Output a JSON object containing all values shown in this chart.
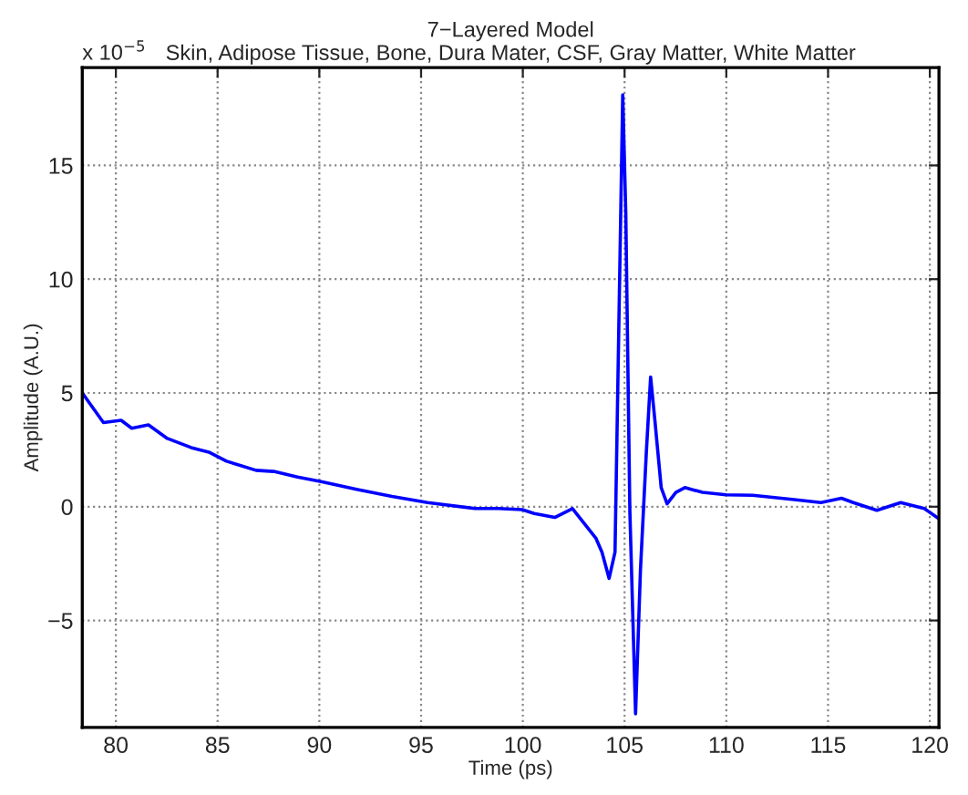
{
  "chart_data": {
    "type": "line",
    "title": "7−Layered Model\nSkin, Adipose Tissue, Bone, Dura Mater, CSF, Gray Matter, White Matter",
    "xlabel": "Time (ps)",
    "ylabel": "Amplitude (A.U.)",
    "annotations": [
      "x 10$^{−5}$"
    ],
    "x": [
      78.35,
      78.99,
      79.39,
      80.26,
      80.78,
      81.6,
      82.53,
      83.7,
      84.57,
      85.44,
      86.89,
      87.76,
      88.93,
      90.09,
      91.83,
      93.57,
      95.32,
      97.65,
      98.8,
      99.97,
      100.56,
      101.57,
      102.44,
      103.6,
      103.89,
      104.24,
      104.53,
      104.91,
      105.06,
      105.26,
      105.54,
      105.78,
      106.07,
      106.28,
      106.5,
      106.8,
      107.09,
      107.52,
      107.96,
      108.83,
      109.99,
      111.3,
      113.34,
      114.65,
      115.66,
      116.24,
      117.4,
      118.57,
      119.73,
      120.4
    ],
    "series": [
      {
        "color": "#0000ff",
        "values": [
          5.0,
          4.2,
          3.7,
          3.8,
          3.45,
          3.6,
          3.0,
          2.6,
          2.4,
          2.0,
          1.6,
          1.55,
          1.3,
          1.1,
          0.76,
          0.45,
          0.18,
          -0.08,
          -0.08,
          -0.13,
          -0.3,
          -0.47,
          -0.08,
          -1.4,
          -2.0,
          -3.15,
          -2.0,
          18.1,
          12.9,
          -0.2,
          -9.1,
          -2.8,
          2.4,
          5.7,
          3.7,
          0.84,
          0.13,
          0.63,
          0.84,
          0.63,
          0.52,
          0.5,
          0.31,
          0.18,
          0.37,
          0.18,
          -0.16,
          0.18,
          -0.08,
          -0.5
        ]
      }
    ],
    "xlim": [
      78.35,
      120.45
    ],
    "ylim": [
      -9.7,
      19.3
    ],
    "xticks": [
      80,
      85,
      90,
      95,
      100,
      105,
      110,
      115,
      120
    ],
    "yticks": [
      {
        "value": -5,
        "label": "−5"
      },
      0,
      5,
      10,
      15
    ],
    "grid": true,
    "line_style": "solid",
    "marker": "none"
  }
}
